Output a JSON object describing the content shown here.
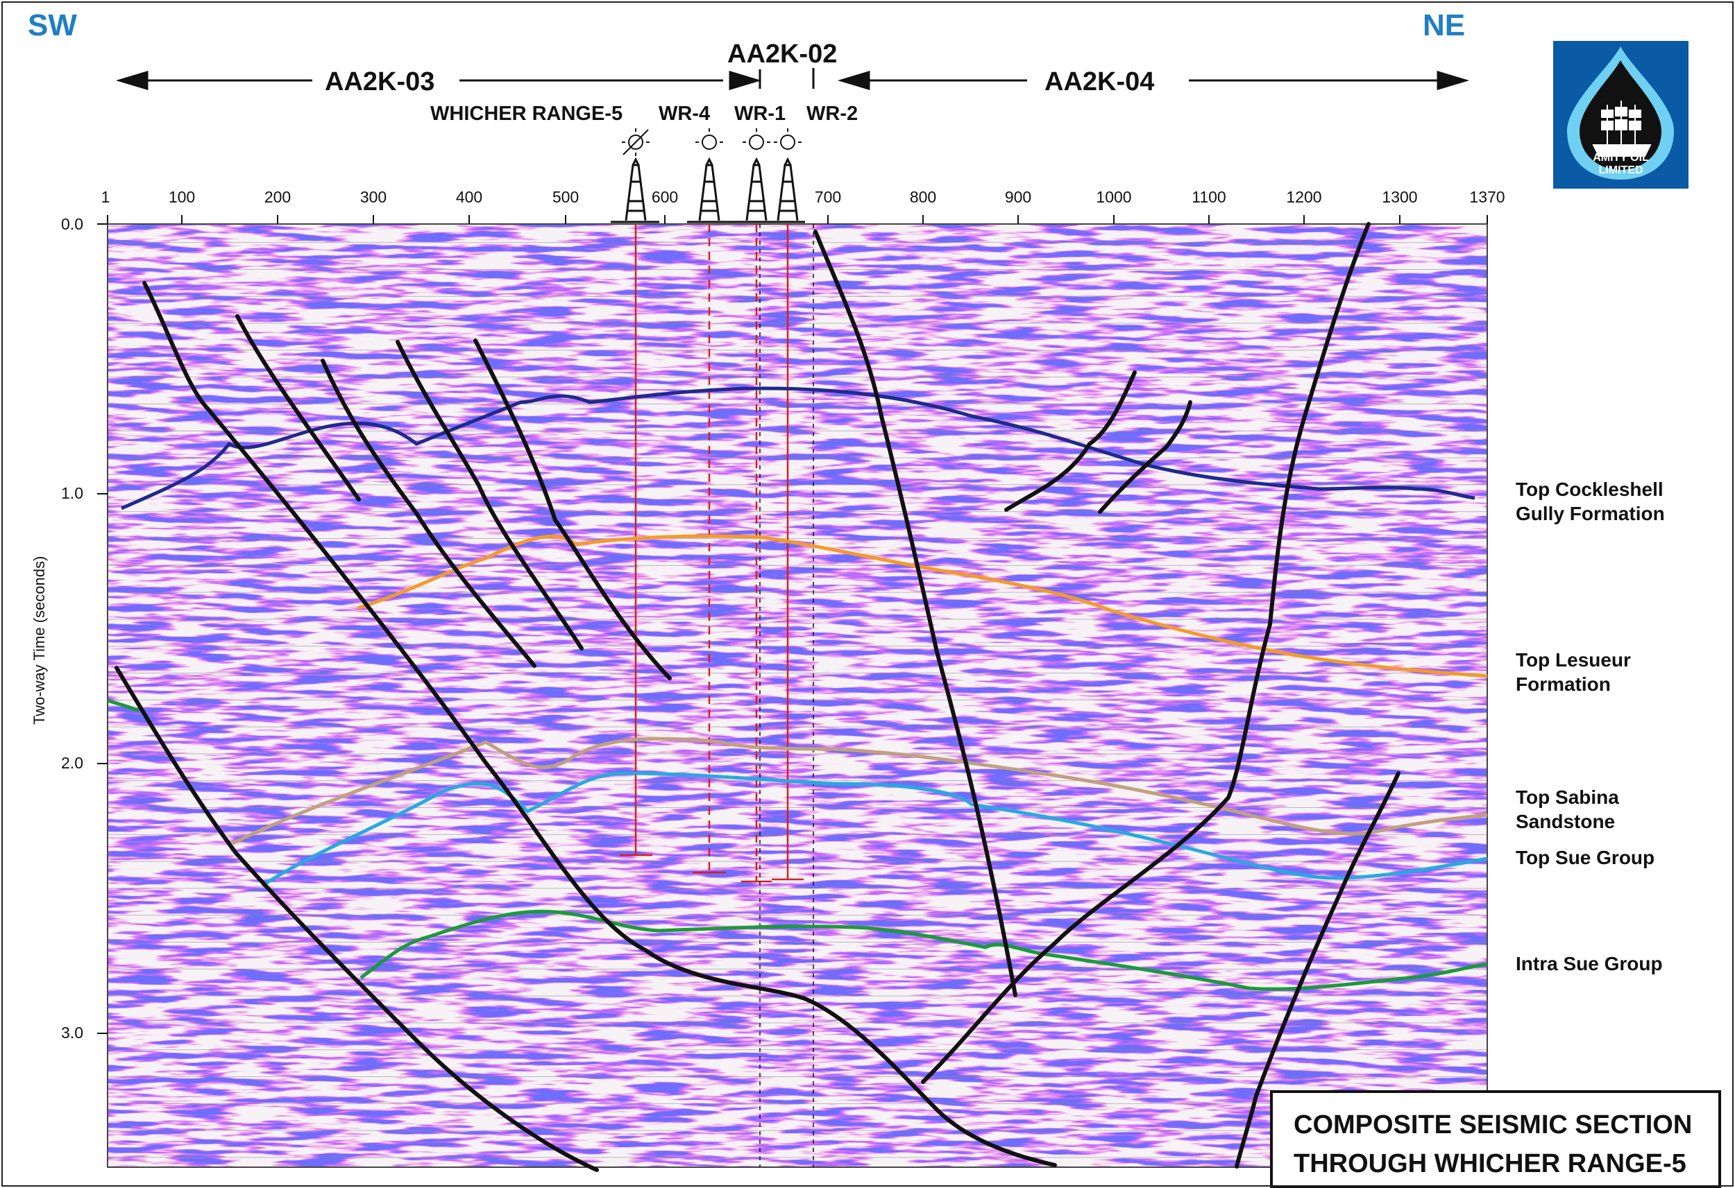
{
  "directions": {
    "left": "SW",
    "right": "NE"
  },
  "lines": {
    "left": "AA2K-03",
    "middle": "AA2K-02",
    "right": "AA2K-04"
  },
  "wells": [
    "WHICHER RANGE-5",
    "WR-4",
    "WR-1",
    "WR-2"
  ],
  "axes": {
    "x_ticks": [
      "1",
      "100",
      "200",
      "300",
      "400",
      "500",
      "600",
      "700",
      "800",
      "900",
      "1000",
      "1100",
      "1200",
      "1300",
      "1370"
    ],
    "y_ticks": [
      "0.0",
      "1.0",
      "2.0",
      "3.0"
    ],
    "y_title": "Two-way Time (seconds)"
  },
  "horizons": [
    {
      "line1": "Top Cockleshell",
      "line2": "Gully Formation",
      "color": "#1f2a8a"
    },
    {
      "line1": "Top Lesueur",
      "line2": "Formation",
      "color": "#f39a2b"
    },
    {
      "line1": "Top Sabina",
      "line2": "Sandstone",
      "color": "#c0a080"
    },
    {
      "line1": "Top Sue Group",
      "line2": "",
      "color": "#2aa8e0"
    },
    {
      "line1": "Intra Sue Group",
      "line2": "",
      "color": "#1a9a3a"
    }
  ],
  "title": {
    "line1": "COMPOSITE SEISMIC SECTION",
    "line2": "THROUGH WHICHER RANGE-5"
  },
  "logo": {
    "line1": "AMITY OIL",
    "line2": "LIMITED"
  },
  "colors": {
    "fault": "#111111",
    "well_trace": "#d42020",
    "direction": "#1f7fc4",
    "logo_bg": "#0b5aa6"
  }
}
